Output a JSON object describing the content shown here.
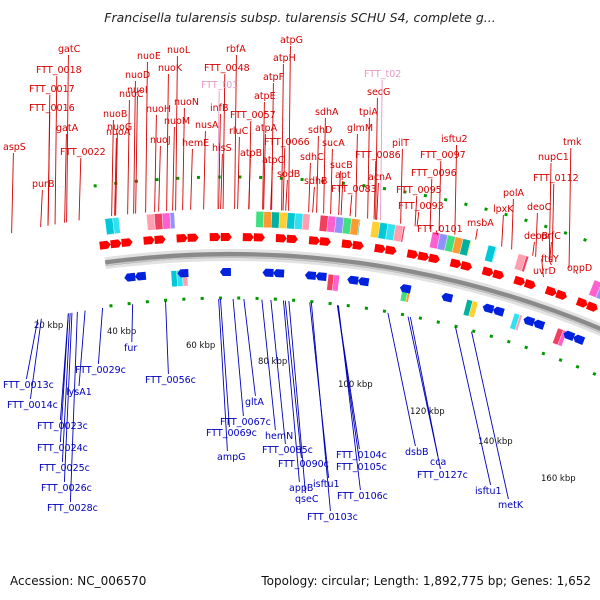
{
  "title": "Francisella tularensis subsp. tularensis SCHU S4, complete g...",
  "footer": {
    "accession": "Accession: NC_006570",
    "summary": "Topology: circular; Length: 1,892,775 bp; Genes: 1,652"
  },
  "colors": {
    "forward_label": "#d40000",
    "reverse_label": "#0000bb",
    "rna_label": "#e39ac6",
    "forward_arrow": "#ff0000",
    "reverse_arrow": "#0022dd",
    "backbone": "#8a8a8a",
    "tick": "#009900"
  },
  "scale_labels": [
    "20 kbp",
    "40 kbp",
    "60 kbp",
    "80 kbp",
    "100 kbp",
    "120 kbp",
    "140 kbp",
    "160 kbp"
  ],
  "forward_labels": [
    "aspS",
    "purB",
    "FTT_0016",
    "FTT_0017",
    "FTT_0018",
    "gatC",
    "gatA",
    "FTT_0022",
    "nuoA",
    "nuoB",
    "nuoC",
    "nuoD",
    "nuoE",
    "nuoG",
    "nuoH",
    "nuoI",
    "nuoJ",
    "nuoK",
    "nuoL",
    "nuoM",
    "nuoN",
    "hemE",
    "FTT_0048",
    "nusA",
    "infB",
    "rbfA",
    "hisS",
    "FTT_t01",
    "FTT_0057",
    "rluC",
    "atpA",
    "atpB",
    "atpC",
    "atpE",
    "atpF",
    "atpG",
    "atpH",
    "FTT_0066",
    "sodB",
    "sdhA",
    "sdhB",
    "sdhC",
    "sdhD",
    "sucA",
    "sucB",
    "apt",
    "glmM",
    "FTT_0083",
    "FTT_0086",
    "FTT_t02",
    "secG",
    "tpiA",
    "acnA",
    "FTT_0093",
    "FTT_0095",
    "FTT_0096",
    "FTT_0097",
    "pilT",
    "isftu2",
    "FTT_0101",
    "msbA",
    "lpxK",
    "deoB",
    "polA",
    "deoC",
    "FTT_0112",
    "nupC1",
    "prfC",
    "tmk",
    "ftsY",
    "uvrD",
    "oppD"
  ],
  "reverse_labels": [
    "FTT_0013c",
    "FTT_0014c",
    "FTT_0023c",
    "FTT_0024c",
    "FTT_0025c",
    "FTT_0026c",
    "FTT_0028c",
    "lysA1",
    "FTT_0029c",
    "fur",
    "FTT_0056c",
    "FTT_0067c",
    "FTT_0069c",
    "gltA",
    "ampG",
    "hemN",
    "FTT_0085c",
    "FTT_0090c",
    "appB",
    "isftu1",
    "qseC",
    "FTT_0103c",
    "FTT_0104c",
    "FTT_0105c",
    "FTT_0106c",
    "dsbB",
    "cca",
    "FTT_0127c",
    "isftu1",
    "metK"
  ]
}
